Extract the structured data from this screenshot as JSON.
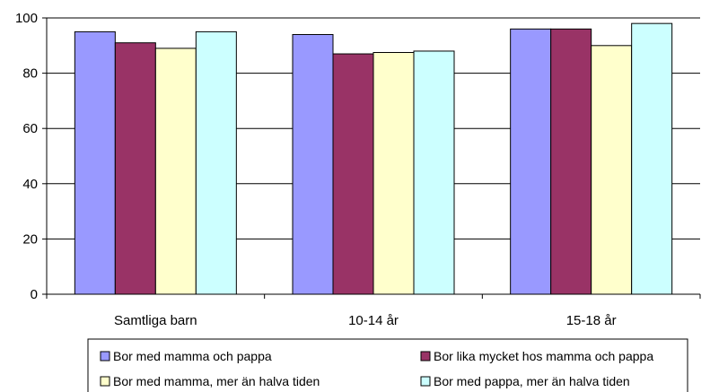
{
  "chart_data": {
    "type": "bar",
    "categories": [
      "Samtliga barn",
      "10-14 år",
      "15-18 år"
    ],
    "series": [
      {
        "name": "Bor med mamma och pappa",
        "color": "#9999FF",
        "values": [
          95,
          94,
          96
        ]
      },
      {
        "name": "Bor lika mycket hos mamma och pappa",
        "color": "#993366",
        "values": [
          91,
          87,
          96
        ]
      },
      {
        "name": "Bor med mamma, mer än halva tiden",
        "color": "#FFFFCC",
        "values": [
          89,
          87.5,
          90
        ]
      },
      {
        "name": "Bor med pappa, mer än halva tiden",
        "color": "#CCFFFF",
        "values": [
          95,
          88,
          98
        ]
      }
    ],
    "yticks": [
      0,
      20,
      40,
      60,
      80,
      100
    ],
    "ylim": [
      0,
      100
    ],
    "grid": true,
    "legend_position": "bottom"
  }
}
